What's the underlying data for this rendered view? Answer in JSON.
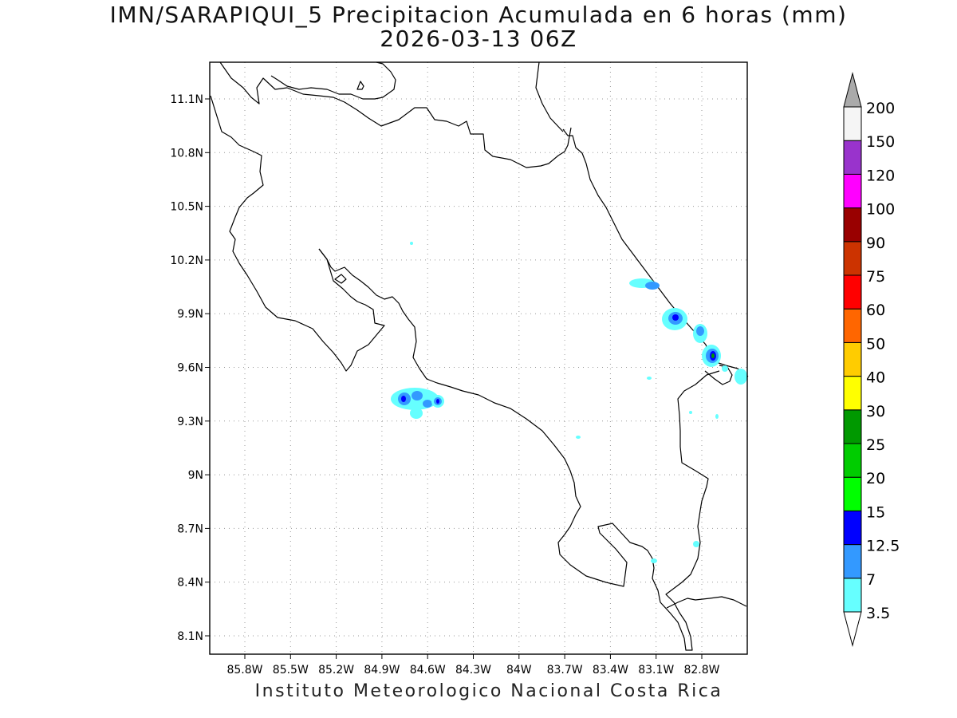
{
  "header": {
    "title": "IMN/SARAPIQUI_5 Precipitacion Acumulada en 6 horas (mm)",
    "valid_time": "2026-03-13 06Z"
  },
  "footer": {
    "credit": "Instituto Meteorologico Nacional Costa Rica"
  },
  "map": {
    "lat_labels": [
      "11.1N",
      "10.8N",
      "10.5N",
      "10.2N",
      "9.9N",
      "9.6N",
      "9.3N",
      "9N",
      "8.7N",
      "8.4N",
      "8.1N"
    ],
    "lon_labels": [
      "85.8W",
      "85.5W",
      "85.2W",
      "84.9W",
      "84.6W",
      "84.3W",
      "84W",
      "83.7W",
      "83.4W",
      "83.1W",
      "82.8W"
    ],
    "grid": "dotted"
  },
  "colorbar": {
    "labels": [
      "3.5",
      "7",
      "12.5",
      "15",
      "20",
      "25",
      "30",
      "40",
      "50",
      "60",
      "75",
      "90",
      "100",
      "120",
      "150",
      "200"
    ],
    "colors": [
      "#66ffff",
      "#3399ff",
      "#0000ff",
      "#00ff00",
      "#00cc00",
      "#009900",
      "#ffff00",
      "#ffcc00",
      "#ff6600",
      "#ff0000",
      "#cc3300",
      "#990000",
      "#ff00ff",
      "#9933cc",
      "#f5f5f5"
    ],
    "extend_low_color": "#ffffff",
    "extend_high_color": "#aaaaaa"
  }
}
